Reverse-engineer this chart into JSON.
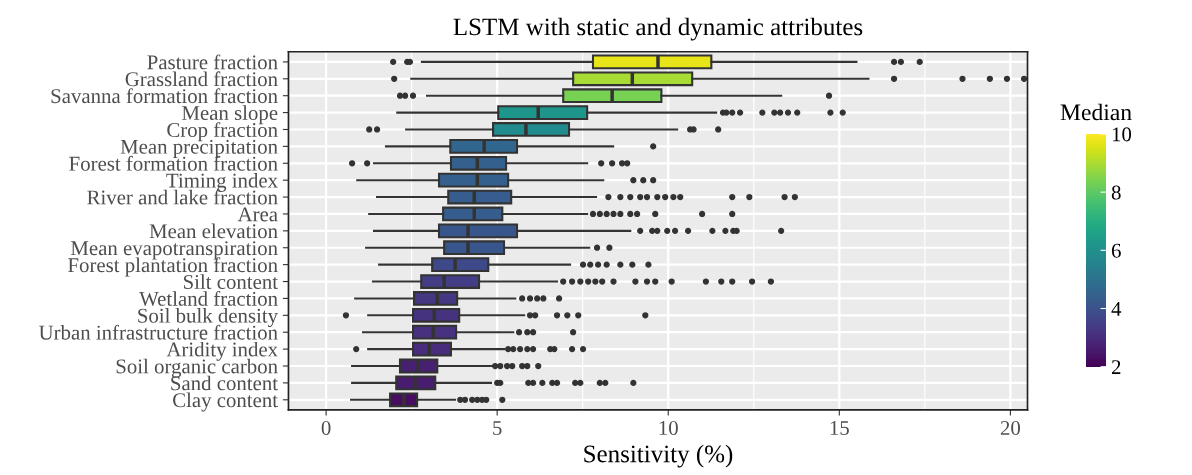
{
  "chart_data": {
    "type": "box",
    "orientation": "horizontal",
    "title": "LSTM with static and dynamic attributes",
    "xlabel": "Sensitivity (%)",
    "clabel": "Median",
    "categories": [
      "Pasture fraction",
      "Grassland fraction",
      "Savanna formation fraction",
      "Mean slope",
      "Crop fraction",
      "Mean precipitation",
      "Forest formation fraction",
      "Timing index",
      "River and lake fraction",
      "Area",
      "Mean elevation",
      "Mean evapotranspiration",
      "Forest plantation fraction",
      "Silt content",
      "Wetland fraction",
      "Soil bulk density",
      "Urban infrastructure fraction",
      "Aridity index",
      "Soil organic carbon",
      "Sand content",
      "Clay content"
    ],
    "boxes": [
      {
        "low": 2.8,
        "q1": 7.8,
        "median": 9.7,
        "q3": 11.26,
        "high": 15.5,
        "outliers": [
          1.96,
          2.37,
          2.45,
          16.6,
          16.8,
          17.35
        ]
      },
      {
        "low": 2.49,
        "q1": 7.22,
        "median": 8.95,
        "q3": 10.7,
        "high": 15.85,
        "outliers": [
          1.99,
          16.6,
          18.6,
          19.4,
          19.9,
          20.4
        ]
      },
      {
        "low": 2.95,
        "q1": 6.93,
        "median": 8.36,
        "q3": 9.8,
        "high": 13.3,
        "outliers": [
          2.16,
          2.31,
          2.54,
          14.7
        ]
      },
      {
        "low": 2.08,
        "q1": 5.03,
        "median": 6.2,
        "q3": 7.63,
        "high": 11.4,
        "outliers": [
          11.6,
          11.7,
          11.87,
          12.1,
          12.75,
          13.1,
          13.27,
          13.5,
          13.77,
          14.74,
          15.1
        ]
      },
      {
        "low": 2.34,
        "q1": 4.88,
        "median": 5.84,
        "q3": 7.1,
        "high": 10.26,
        "outliers": [
          1.26,
          1.49,
          10.64,
          10.74,
          11.46
        ]
      },
      {
        "low": 1.75,
        "q1": 3.63,
        "median": 4.62,
        "q3": 5.58,
        "high": 8.39,
        "outliers": [
          9.56
        ]
      },
      {
        "low": 1.4,
        "q1": 3.65,
        "median": 4.42,
        "q3": 5.26,
        "high": 7.63,
        "outliers": [
          0.76,
          1.2,
          8.04,
          8.36,
          8.65,
          8.8
        ]
      },
      {
        "low": 0.91,
        "q1": 3.3,
        "median": 4.42,
        "q3": 5.32,
        "high": 8.1,
        "outliers": [
          8.98,
          9.27,
          9.56
        ]
      },
      {
        "low": 1.49,
        "q1": 3.57,
        "median": 4.33,
        "q3": 5.41,
        "high": 7.89,
        "outliers": [
          8.25,
          8.6,
          8.89,
          9.18,
          9.38,
          9.68,
          9.91,
          10.15,
          10.35,
          11.87,
          12.37,
          13.4,
          13.7
        ]
      },
      {
        "low": 1.26,
        "q1": 3.42,
        "median": 4.33,
        "q3": 5.15,
        "high": 7.63,
        "outliers": [
          7.8,
          8.0,
          8.2,
          8.4,
          8.6,
          8.89,
          9.09,
          9.62,
          10.99,
          11.87
        ]
      },
      {
        "low": 1.4,
        "q1": 3.3,
        "median": 4.15,
        "q3": 5.58,
        "high": 8.89,
        "outliers": [
          9.18,
          9.53,
          9.68,
          9.97,
          10.2,
          10.58,
          11.29,
          11.67,
          11.9,
          12.0,
          13.3
        ]
      },
      {
        "low": 1.17,
        "q1": 3.45,
        "median": 4.15,
        "q3": 5.2,
        "high": 7.69,
        "outliers": [
          7.92,
          8.28
        ]
      },
      {
        "low": 1.55,
        "q1": 3.1,
        "median": 3.77,
        "q3": 4.74,
        "high": 7.13,
        "outliers": [
          7.51,
          7.72,
          7.95,
          8.2,
          8.6,
          8.95,
          9.42
        ]
      },
      {
        "low": 1.37,
        "q1": 2.78,
        "median": 3.45,
        "q3": 4.47,
        "high": 6.75,
        "outliers": [
          6.93,
          7.19,
          7.43,
          7.66,
          7.87,
          8.07,
          8.4,
          9.04,
          9.38,
          9.62,
          10.1,
          11.1,
          11.55,
          11.87,
          12.45,
          13.0
        ]
      },
      {
        "low": 0.85,
        "q1": 2.57,
        "median": 3.25,
        "q3": 3.83,
        "high": 5.53,
        "outliers": [
          5.73,
          5.96,
          6.17,
          6.35,
          6.81
        ]
      },
      {
        "low": 1.23,
        "q1": 2.54,
        "median": 3.16,
        "q3": 3.89,
        "high": 5.79,
        "outliers": [
          0.58,
          5.96,
          6.11,
          6.75,
          7.05,
          7.37,
          9.33
        ]
      },
      {
        "low": 1.08,
        "q1": 2.54,
        "median": 3.13,
        "q3": 3.8,
        "high": 5.47,
        "outliers": [
          5.64,
          5.88,
          6.05,
          7.22
        ]
      },
      {
        "low": 1.23,
        "q1": 2.54,
        "median": 3.01,
        "q3": 3.65,
        "high": 5.2,
        "outliers": [
          0.88,
          5.32,
          5.47,
          5.67,
          5.88,
          6.05,
          6.55,
          6.67,
          7.19,
          7.51
        ]
      },
      {
        "low": 0.76,
        "q1": 2.16,
        "median": 2.69,
        "q3": 3.25,
        "high": 4.85,
        "outliers": [
          4.94,
          5.09,
          5.29,
          5.44,
          5.73,
          5.88,
          6.2
        ]
      },
      {
        "low": 0.76,
        "q1": 2.05,
        "median": 2.6,
        "q3": 3.19,
        "high": 4.82,
        "outliers": [
          5.0,
          5.09,
          5.91,
          6.05,
          6.32,
          6.61,
          6.75,
          7.28,
          7.43,
          8.0,
          8.16,
          8.98
        ]
      },
      {
        "low": 0.73,
        "q1": 1.87,
        "median": 2.28,
        "q3": 2.66,
        "high": 3.77,
        "outliers": [
          3.92,
          4.06,
          4.27,
          4.42,
          4.56,
          4.68,
          5.15
        ]
      }
    ],
    "xlim": [
      -1.1,
      20.5
    ],
    "xticks": [
      0,
      5,
      10,
      15,
      20
    ],
    "clim": [
      2,
      10
    ],
    "cticks": [
      2,
      4,
      6,
      8,
      10
    ],
    "grid": true
  }
}
